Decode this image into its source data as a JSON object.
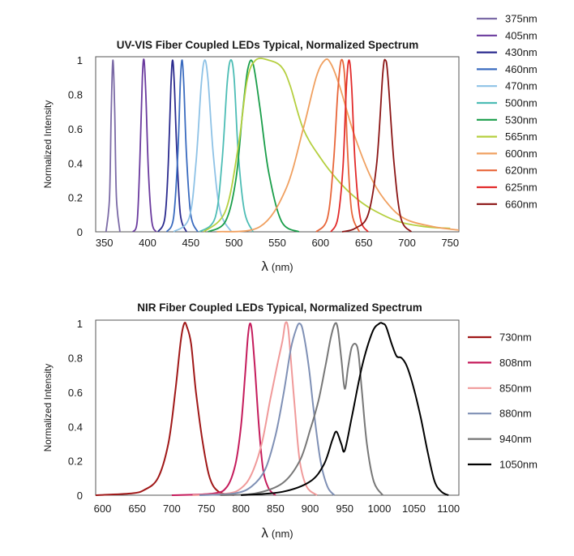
{
  "chart_data": [
    {
      "type": "line",
      "title": "UV-VIS Fiber Coupled LEDs Typical, Normalized Spectrum",
      "xlabel_symbol": "λ",
      "xlabel_unit": "(nm)",
      "ylabel": "Normalized Intensity",
      "xlim": [
        340,
        760
      ],
      "ylim": [
        0,
        1.02
      ],
      "xticks": [
        350,
        400,
        450,
        500,
        550,
        600,
        650,
        700,
        750
      ],
      "yticks": [
        0,
        0.2,
        0.4,
        0.6,
        0.8,
        1
      ],
      "ytick_labels": [
        "0",
        "0.2",
        "0.4",
        "0.6",
        "0.8",
        "1"
      ],
      "legend_position": "right",
      "grid": false,
      "series": [
        {
          "name": "375nm",
          "color": "#7b6aa6",
          "x": [
            352,
            356,
            358,
            360,
            362,
            364,
            368
          ],
          "y": [
            0,
            0.2,
            0.7,
            1.0,
            0.7,
            0.2,
            0
          ]
        },
        {
          "name": "405nm",
          "color": "#6a3a9e",
          "x": [
            383,
            388,
            391,
            394,
            396,
            398,
            401,
            405,
            410
          ],
          "y": [
            0,
            0.06,
            0.4,
            0.9,
            1.0,
            0.8,
            0.35,
            0.06,
            0
          ]
        },
        {
          "name": "430nm",
          "color": "#2a2a8e",
          "x": [
            412,
            420,
            424,
            427,
            429,
            431,
            434,
            438,
            445
          ],
          "y": [
            0,
            0.08,
            0.4,
            0.85,
            1.0,
            0.85,
            0.45,
            0.1,
            0
          ]
        },
        {
          "name": "460nm",
          "color": "#3a6bbf",
          "x": [
            422,
            430,
            435,
            438,
            440,
            442,
            445,
            450,
            458
          ],
          "y": [
            0,
            0.08,
            0.45,
            0.88,
            1.0,
            0.85,
            0.45,
            0.1,
            0
          ]
        },
        {
          "name": "470nm",
          "color": "#8ec2e6",
          "x": [
            430,
            448,
            456,
            462,
            466,
            470,
            476,
            484,
            497
          ],
          "y": [
            0,
            0.08,
            0.4,
            0.85,
            1.0,
            0.88,
            0.45,
            0.12,
            0
          ]
        },
        {
          "name": "500nm",
          "color": "#4dbdb5",
          "x": [
            460,
            478,
            486,
            492,
            496,
            500,
            505,
            512,
            522
          ],
          "y": [
            0,
            0.08,
            0.4,
            0.86,
            1.0,
            0.9,
            0.45,
            0.12,
            0
          ]
        },
        {
          "name": "530nm",
          "color": "#1a9e4a",
          "x": [
            470,
            490,
            502,
            510,
            516,
            522,
            530,
            540,
            555,
            575
          ],
          "y": [
            0,
            0.06,
            0.3,
            0.7,
            0.95,
            0.98,
            0.72,
            0.35,
            0.06,
            0
          ]
        },
        {
          "name": "565nm",
          "color": "#b5cf3f",
          "x": [
            465,
            490,
            505,
            515,
            525,
            540,
            555,
            565,
            580,
            600,
            620,
            640,
            660,
            690,
            720,
            750
          ],
          "y": [
            0,
            0.12,
            0.5,
            0.88,
            1.0,
            1.0,
            0.96,
            0.85,
            0.6,
            0.43,
            0.3,
            0.2,
            0.13,
            0.06,
            0.03,
            0.02
          ]
        },
        {
          "name": "600nm",
          "color": "#f0a060",
          "x": [
            480,
            530,
            560,
            580,
            595,
            605,
            612,
            622,
            640,
            660,
            680,
            700,
            730,
            760
          ],
          "y": [
            0,
            0.03,
            0.25,
            0.6,
            0.9,
            1.0,
            0.98,
            0.85,
            0.55,
            0.3,
            0.15,
            0.07,
            0.03,
            0.01
          ]
        },
        {
          "name": "620nm",
          "color": "#e8663a",
          "x": [
            595,
            608,
            615,
            620,
            624,
            628,
            631,
            636,
            645
          ],
          "y": [
            0,
            0.08,
            0.4,
            0.82,
            1.0,
            0.9,
            0.5,
            0.12,
            0
          ]
        },
        {
          "name": "625nm",
          "color": "#e22a2a",
          "x": [
            612,
            620,
            626,
            630,
            633,
            636,
            640,
            646,
            655
          ],
          "y": [
            0,
            0.08,
            0.38,
            0.85,
            1.0,
            0.85,
            0.4,
            0.08,
            0
          ]
        },
        {
          "name": "660nm",
          "color": "#8b1515",
          "x": [
            625,
            640,
            655,
            665,
            672,
            675,
            678,
            685,
            693,
            705
          ],
          "y": [
            0,
            0.02,
            0.1,
            0.4,
            0.92,
            1.0,
            0.9,
            0.4,
            0.08,
            0
          ]
        }
      ]
    },
    {
      "type": "line",
      "title": "NIR Fiber Coupled LEDs Typical, Normalized Spectrum",
      "xlabel_symbol": "λ",
      "xlabel_unit": "(nm)",
      "ylabel": "Normalized Intensity",
      "xlim": [
        590,
        1115
      ],
      "ylim": [
        0,
        1.02
      ],
      "xticks": [
        600,
        650,
        700,
        750,
        800,
        850,
        900,
        950,
        1000,
        1050,
        1100
      ],
      "yticks": [
        0,
        0.2,
        0.4,
        0.6,
        0.8,
        1
      ],
      "ytick_labels": [
        "0",
        "0.2",
        "0.4",
        "0.6",
        "0.8",
        "1"
      ],
      "legend_position": "right",
      "grid": false,
      "series": [
        {
          "name": "730nm",
          "color": "#a01818",
          "x": [
            590,
            640,
            660,
            680,
            695,
            705,
            713,
            718,
            722,
            728,
            735,
            745,
            755,
            768,
            790
          ],
          "y": [
            0,
            0.01,
            0.03,
            0.1,
            0.3,
            0.6,
            0.9,
            1.0,
            0.98,
            0.88,
            0.6,
            0.3,
            0.1,
            0.02,
            0
          ]
        },
        {
          "name": "808nm",
          "color": "#c51c5c",
          "x": [
            700,
            760,
            780,
            792,
            800,
            806,
            810,
            813,
            816,
            820,
            826,
            832,
            840,
            850
          ],
          "y": [
            0,
            0.01,
            0.05,
            0.18,
            0.4,
            0.7,
            0.92,
            1.0,
            0.95,
            0.75,
            0.4,
            0.15,
            0.04,
            0
          ]
        },
        {
          "name": "850nm",
          "color": "#f09a9a",
          "x": [
            730,
            780,
            800,
            815,
            830,
            842,
            852,
            860,
            864,
            868,
            872,
            878,
            885,
            895,
            910
          ],
          "y": [
            0,
            0.01,
            0.04,
            0.12,
            0.3,
            0.55,
            0.75,
            0.9,
            1.0,
            0.98,
            0.8,
            0.5,
            0.2,
            0.05,
            0
          ]
        },
        {
          "name": "880nm",
          "color": "#7f90b5",
          "x": [
            740,
            790,
            815,
            835,
            850,
            862,
            872,
            880,
            885,
            890,
            898,
            905,
            915,
            925,
            935
          ],
          "y": [
            0,
            0.01,
            0.05,
            0.15,
            0.35,
            0.6,
            0.85,
            0.97,
            1.0,
            0.95,
            0.75,
            0.5,
            0.2,
            0.05,
            0
          ]
        },
        {
          "name": "940nm",
          "color": "#777777",
          "x": [
            770,
            820,
            860,
            885,
            900,
            912,
            922,
            930,
            936,
            940,
            945,
            950,
            955,
            960,
            966,
            970,
            975,
            982,
            992,
            1005
          ],
          "y": [
            0,
            0.01,
            0.07,
            0.2,
            0.38,
            0.55,
            0.75,
            0.92,
            1.0,
            0.97,
            0.8,
            0.62,
            0.75,
            0.86,
            0.88,
            0.82,
            0.6,
            0.3,
            0.08,
            0
          ]
        },
        {
          "name": "1050nm",
          "color": "#000000",
          "x": [
            800,
            860,
            900,
            920,
            932,
            938,
            945,
            950,
            960,
            975,
            990,
            1000,
            1005,
            1010,
            1018,
            1025,
            1032,
            1040,
            1050,
            1060,
            1070,
            1080,
            1090,
            1100
          ],
          "y": [
            0,
            0.02,
            0.08,
            0.18,
            0.32,
            0.37,
            0.3,
            0.26,
            0.45,
            0.75,
            0.95,
            1.0,
            1.0,
            0.98,
            0.88,
            0.81,
            0.8,
            0.75,
            0.62,
            0.45,
            0.25,
            0.08,
            0.02,
            0
          ]
        }
      ]
    }
  ]
}
